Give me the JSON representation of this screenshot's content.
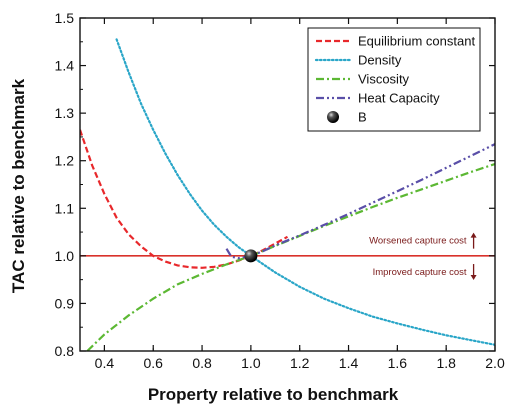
{
  "chart_data": {
    "type": "line",
    "title": "",
    "xlabel": "Property relative to benchmark",
    "ylabel": "TAC relative to benchmark",
    "xlim": [
      0.3,
      2.0
    ],
    "ylim": [
      0.8,
      1.5
    ],
    "xticks": [
      0.4,
      0.6,
      0.8,
      1.0,
      1.2,
      1.4,
      1.6,
      1.8,
      2.0
    ],
    "xtick_labels": [
      "0.4",
      "0.6",
      "0.8",
      "1.0",
      "1.2",
      "1.4",
      "1.6",
      "1.8",
      "2.0"
    ],
    "yticks": [
      0.8,
      0.9,
      1.0,
      1.1,
      1.2,
      1.3,
      1.4,
      1.5
    ],
    "ytick_labels": [
      "0.8",
      "0.9",
      "1.0",
      "1.1",
      "1.2",
      "1.3",
      "1.4",
      "1.5"
    ],
    "grid": false,
    "legend_position": "top-right",
    "series": [
      {
        "name": "Equilibrium constant",
        "color": "#e8282b",
        "dash": "dashed",
        "x": [
          0.3,
          0.35,
          0.4,
          0.45,
          0.5,
          0.55,
          0.6,
          0.65,
          0.7,
          0.75,
          0.8,
          0.85,
          0.9,
          0.95,
          1.0,
          1.05,
          1.1,
          1.15
        ],
        "y": [
          1.265,
          1.19,
          1.13,
          1.08,
          1.045,
          1.02,
          1.0,
          0.988,
          0.98,
          0.976,
          0.975,
          0.977,
          0.982,
          0.99,
          1.0,
          1.012,
          1.026,
          1.04
        ]
      },
      {
        "name": "Density",
        "color": "#2aa6c8",
        "dash": "dotted",
        "x": [
          0.45,
          0.5,
          0.55,
          0.6,
          0.65,
          0.7,
          0.75,
          0.8,
          0.85,
          0.9,
          0.95,
          1.0,
          1.1,
          1.2,
          1.3,
          1.4,
          1.5,
          1.6,
          1.7,
          1.8,
          1.9,
          2.0
        ],
        "y": [
          1.455,
          1.385,
          1.32,
          1.265,
          1.215,
          1.17,
          1.13,
          1.095,
          1.065,
          1.04,
          1.018,
          1.0,
          0.965,
          0.935,
          0.91,
          0.89,
          0.872,
          0.858,
          0.845,
          0.833,
          0.823,
          0.813
        ]
      },
      {
        "name": "Viscosity",
        "color": "#5cb833",
        "dash": "dashdot",
        "x": [
          0.33,
          0.4,
          0.5,
          0.6,
          0.7,
          0.8,
          0.9,
          1.0,
          1.1,
          1.2,
          1.3,
          1.4,
          1.5,
          1.6,
          1.7,
          1.8,
          1.9,
          2.0
        ],
        "y": [
          0.8,
          0.835,
          0.875,
          0.91,
          0.94,
          0.962,
          0.982,
          1.0,
          1.021,
          1.042,
          1.063,
          1.083,
          1.103,
          1.122,
          1.14,
          1.158,
          1.176,
          1.193
        ]
      },
      {
        "name": "Heat Capacity",
        "color": "#5a4fa8",
        "dash": "dashdotdot",
        "x": [
          0.9,
          0.92,
          0.95,
          1.0,
          1.05,
          1.1,
          1.2,
          1.3,
          1.4,
          1.5,
          1.6,
          1.7,
          1.8,
          1.9,
          2.0
        ],
        "y": [
          1.015,
          0.998,
          0.995,
          1.0,
          1.01,
          1.022,
          1.043,
          1.065,
          1.088,
          1.112,
          1.136,
          1.16,
          1.185,
          1.21,
          1.235
        ]
      }
    ],
    "benchmark_point": {
      "name": "B",
      "x": 1.0,
      "y": 1.0
    },
    "reference_line": {
      "y": 1.0,
      "color": "#d9312b"
    },
    "annotations": [
      {
        "text": "Worsened capture cost",
        "x": 1.9,
        "y": 1.032,
        "arrow": "up"
      },
      {
        "text": "Improved capture cost",
        "x": 1.9,
        "y": 0.966,
        "arrow": "down"
      }
    ],
    "annotation_color": "#7a1a1a"
  }
}
